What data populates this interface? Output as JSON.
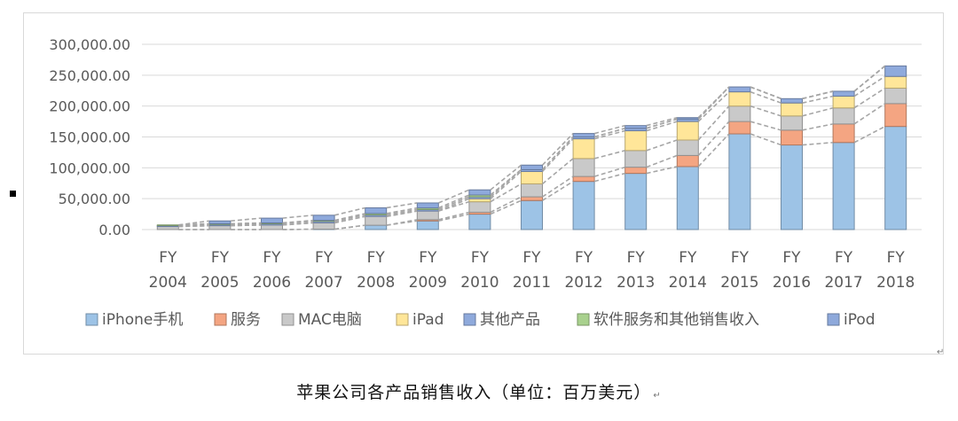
{
  "caption": "苹果公司各产品销售收入（单位：百万美元）",
  "chart_data": {
    "type": "bar",
    "stacked": true,
    "categories": [
      "FY|2004",
      "FY|2005",
      "FY|2006",
      "FY|2007",
      "FY|2008",
      "FY|2009",
      "FY|2010",
      "FY|2011",
      "FY|2012",
      "FY|2013",
      "FY|2014",
      "FY|2015",
      "FY|2016",
      "FY|2017",
      "FY|2018"
    ],
    "ylim": [
      0,
      300000
    ],
    "yticks": [
      "0.00",
      "50,000.00",
      "100,000.00",
      "150,000.00",
      "200,000.00",
      "250,000.00",
      "300,000.00"
    ],
    "grid": true,
    "legend_position": "bottom",
    "series_lines": "dashed-connectors",
    "series": [
      {
        "name": "iPhone手机",
        "color": "#9dc3e6",
        "values": [
          0,
          0,
          0,
          600,
          7000,
          14000,
          25000,
          47000,
          78000,
          91000,
          102000,
          155000,
          137000,
          141000,
          167000
        ]
      },
      {
        "name": "服务",
        "color": "#f4a582",
        "values": [
          0,
          0,
          0,
          0,
          0,
          2000,
          3000,
          6000,
          8000,
          10000,
          18000,
          20000,
          24000,
          30000,
          37000
        ]
      },
      {
        "name": "MAC电脑",
        "color": "#c9c9c9",
        "values": [
          4900,
          6300,
          7400,
          10300,
          14300,
          14000,
          17000,
          21000,
          29000,
          27000,
          25000,
          25000,
          23000,
          26000,
          25000
        ]
      },
      {
        "name": "iPad",
        "color": "#ffe699",
        "values": [
          0,
          0,
          0,
          0,
          0,
          0,
          5000,
          20000,
          32000,
          32000,
          30000,
          23000,
          21000,
          19000,
          19000
        ]
      },
      {
        "name": "其他产品",
        "color": "#8faadc",
        "values": [
          1600,
          2000,
          2100,
          2500,
          2500,
          2500,
          3000,
          3000,
          3000,
          4000,
          4000,
          8000,
          7000,
          8000,
          17000
        ]
      },
      {
        "name": "软件服务和其他销售收入",
        "color": "#a9d18e",
        "values": [
          1000,
          1200,
          1300,
          1500,
          2200,
          2500,
          3000,
          0,
          0,
          0,
          0,
          0,
          0,
          0,
          0
        ]
      },
      {
        "name": "iPod",
        "color": "#8ea9db",
        "values": [
          0,
          4500,
          7700,
          8300,
          9200,
          8100,
          8300,
          7400,
          5600,
          4400,
          2300,
          0,
          0,
          0,
          0
        ]
      }
    ]
  }
}
